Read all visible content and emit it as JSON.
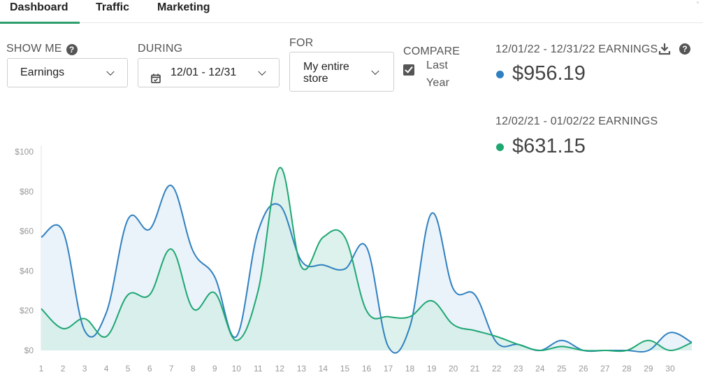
{
  "tabs": [
    {
      "label": "Dashboard",
      "active": true
    },
    {
      "label": "Traffic",
      "active": false
    },
    {
      "label": "Marketing",
      "active": false
    }
  ],
  "filters": {
    "show_me": {
      "label": "SHOW ME",
      "value": "Earnings"
    },
    "during": {
      "label": "DURING",
      "value": "12/01 - 12/31"
    },
    "for": {
      "label": "FOR",
      "value_line1": "My entire",
      "value_line2": "store"
    },
    "compare": {
      "label": "COMPARE",
      "option_line1": "Last",
      "option_line2": "Year",
      "checked": true
    }
  },
  "summary": {
    "current": {
      "label": "12/01/22 - 12/31/22 EARNINGS",
      "value": "$956.19",
      "color": "#2f80c0"
    },
    "previous": {
      "label": "12/02/21 - 01/02/22 EARNINGS",
      "value": "$631.15",
      "color": "#1fa772"
    }
  },
  "icons": {
    "download": "download-icon",
    "help": "help-icon",
    "calendar": "calendar-icon"
  },
  "chart_data": {
    "type": "area",
    "x": [
      "1",
      "2",
      "3",
      "4",
      "5",
      "6",
      "7",
      "8",
      "9",
      "10",
      "11",
      "12",
      "13",
      "14",
      "15",
      "16",
      "17",
      "18",
      "19",
      "20",
      "21",
      "22",
      "23",
      "24",
      "25",
      "26",
      "27",
      "28",
      "29",
      "30",
      ""
    ],
    "xlim": [
      1,
      31
    ],
    "ylim": [
      0,
      100
    ],
    "yticks": [
      "$0",
      "$20",
      "$40",
      "$60",
      "$80",
      "$100"
    ],
    "series": [
      {
        "name": "12/01/22 - 12/31/22",
        "color": "#2f80c0",
        "fill": "#e8f1fa",
        "values": [
          57,
          60,
          10,
          19,
          66,
          61,
          83,
          50,
          37,
          7,
          60,
          73,
          45,
          43,
          41,
          52,
          2,
          12,
          69,
          31,
          28,
          4,
          3,
          0,
          5,
          0,
          0,
          0,
          0,
          9,
          4
        ]
      },
      {
        "name": "12/02/21 - 01/02/22",
        "color": "#1fa772",
        "fill": "#d2ede5",
        "values": [
          21,
          11,
          16,
          7,
          28,
          28,
          51,
          21,
          29,
          5,
          30,
          92,
          42,
          57,
          57,
          20,
          17,
          17,
          25,
          13,
          10,
          7,
          3,
          0,
          2,
          0,
          0,
          0,
          5,
          0,
          4
        ]
      }
    ]
  }
}
